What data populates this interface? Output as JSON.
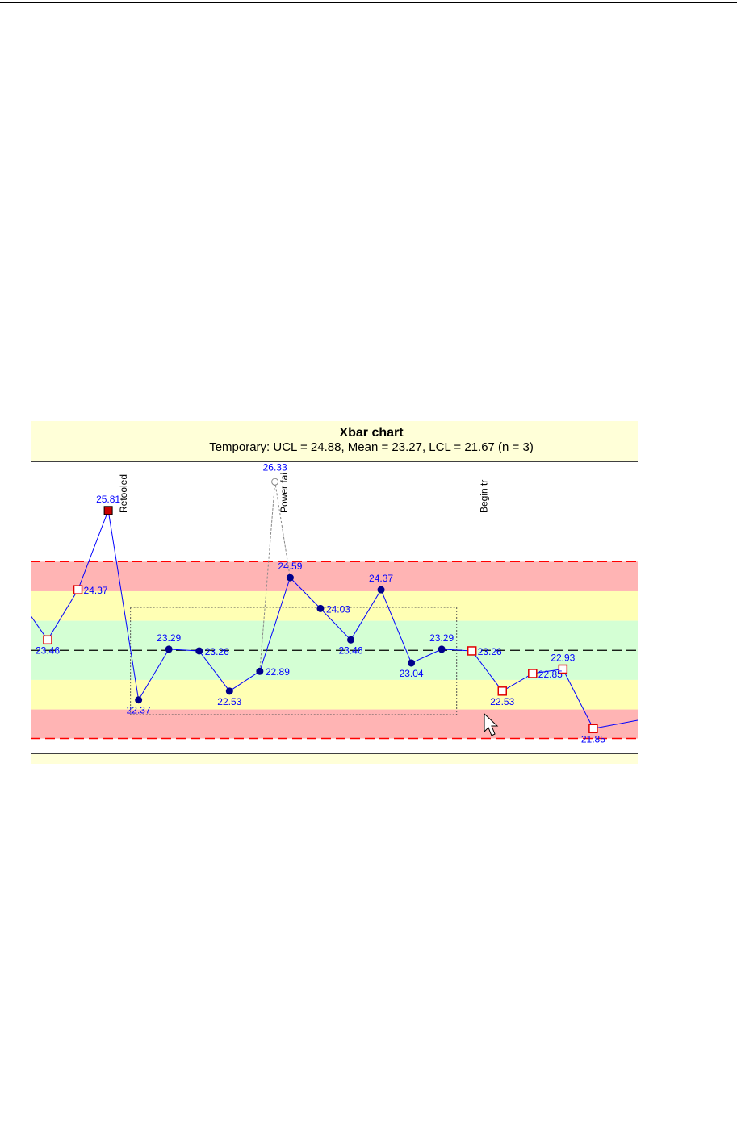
{
  "chart_data": {
    "type": "line",
    "title": "Xbar chart",
    "subtitle": "Temporary: UCL = 24.88, Mean = 23.27, LCL = 21.67 (n = 3)",
    "ucl": 24.88,
    "mean": 23.27,
    "lcl": 21.67,
    "ylim": [
      21.4,
      26.7
    ],
    "zones": {
      "outer_color": "#ffb4b4",
      "middle_color": "#ffffb4",
      "inner_color": "#d4ffd4",
      "limit_line_color": "#ff0000",
      "mean_line_color": "#000000"
    },
    "series": [
      {
        "values": [
          23.46,
          24.37,
          25.81,
          22.37,
          23.29,
          23.26,
          22.53,
          22.89,
          24.59,
          24.03,
          23.46,
          24.37,
          23.04,
          23.29,
          23.26,
          22.53,
          22.85,
          22.93,
          21.85
        ],
        "labels": [
          "23.46",
          "24.37",
          "25.81",
          "22.37",
          "23.29",
          "23.26",
          "22.53",
          "22.89",
          "24.59",
          "24.03",
          "23.46",
          "24.37",
          "23.04",
          "23.29",
          "23.26",
          "22.53",
          "22.85",
          "22.93",
          "21.85"
        ],
        "markers": [
          "open-square",
          "open-square",
          "filled-red-square",
          "dot",
          "dot",
          "dot",
          "dot",
          "dot",
          "dot",
          "dot",
          "dot",
          "dot",
          "dot",
          "dot",
          "open-square",
          "open-square",
          "open-square",
          "open-square",
          "open-square"
        ],
        "line_color": "#0000ff"
      }
    ],
    "excluded_point": {
      "value": 26.33,
      "label": "26.33",
      "between": [
        7,
        8
      ]
    },
    "annotations": [
      {
        "text": "Retooled",
        "at": 2.5
      },
      {
        "text": "Power fai",
        "at": 7.8
      },
      {
        "text": "Begin tr",
        "at": 14.4
      }
    ],
    "selection_range": [
      3,
      14
    ]
  }
}
